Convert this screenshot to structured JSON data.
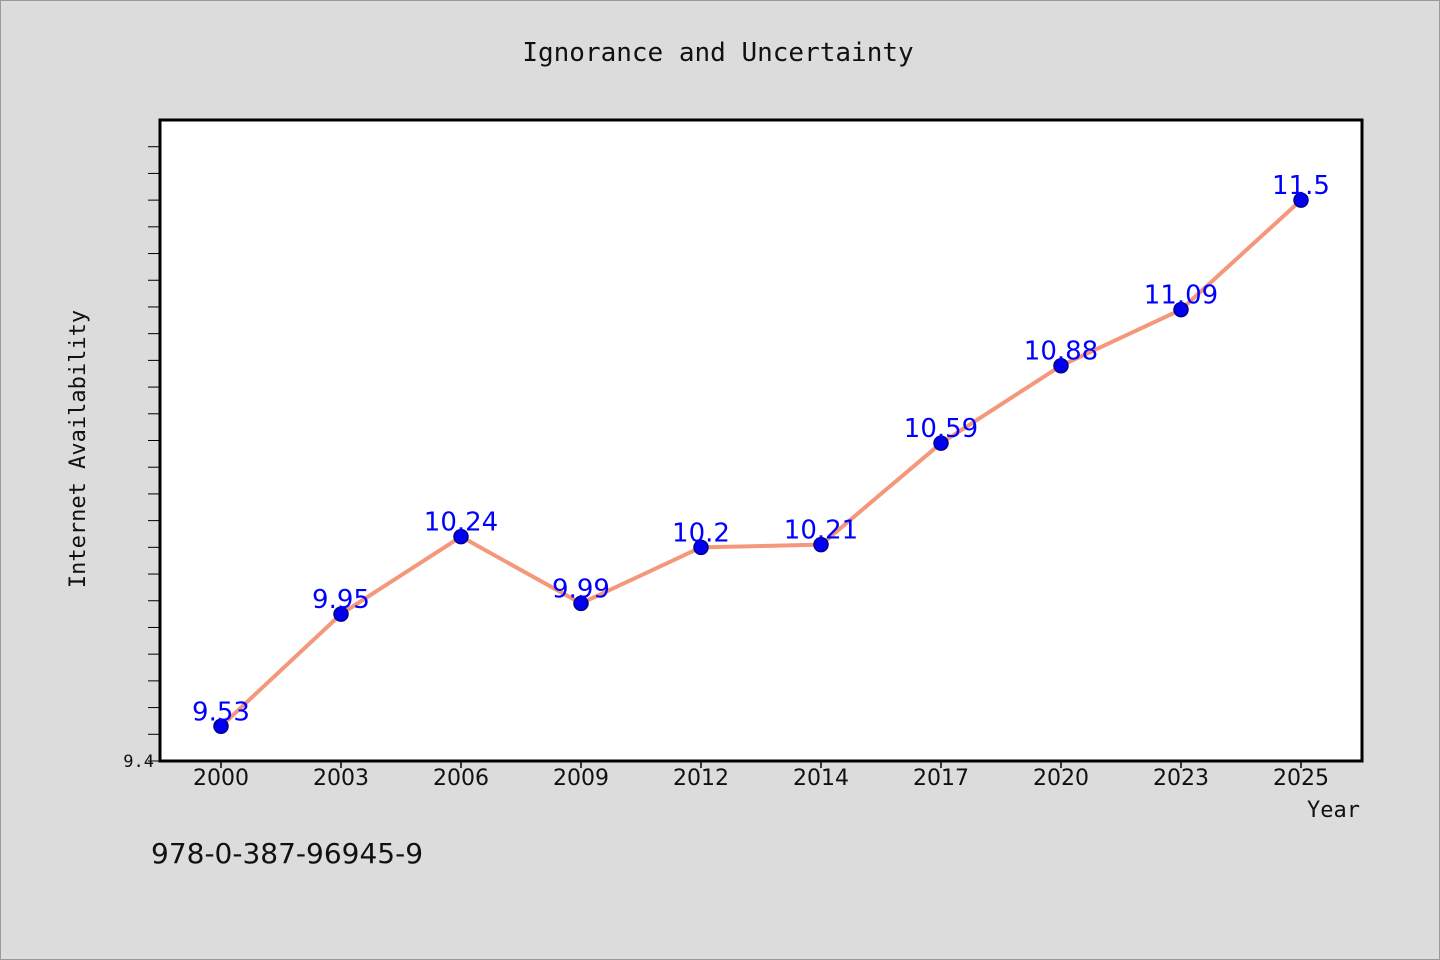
{
  "chart_data": {
    "type": "line",
    "title": "Ignorance and Uncertainty",
    "xlabel": "Year",
    "ylabel": "Internet Availability",
    "categories": [
      "2000",
      "2003",
      "2006",
      "2009",
      "2012",
      "2014",
      "2017",
      "2020",
      "2023",
      "2025"
    ],
    "values": [
      9.53,
      9.95,
      10.24,
      9.99,
      10.2,
      10.21,
      10.59,
      10.88,
      11.09,
      11.5
    ],
    "data_labels": [
      "9.53",
      "9.95",
      "10.24",
      "9.99",
      "10.2",
      "10.21",
      "10.59",
      "10.88",
      "11.09",
      "11.5"
    ],
    "y_tick_labels": [
      "9.4"
    ],
    "ylim": [
      9.4,
      11.8
    ],
    "grid": false,
    "legend": "none",
    "colors": {
      "line": "#f4977a",
      "marker": "#0000ee",
      "marker_edge": "#00008b",
      "data_label": "#0000ff",
      "plot_background": "#ffffff",
      "page_background": "#dcdcdc"
    }
  },
  "footer_text": "978-0-387-96945-9"
}
